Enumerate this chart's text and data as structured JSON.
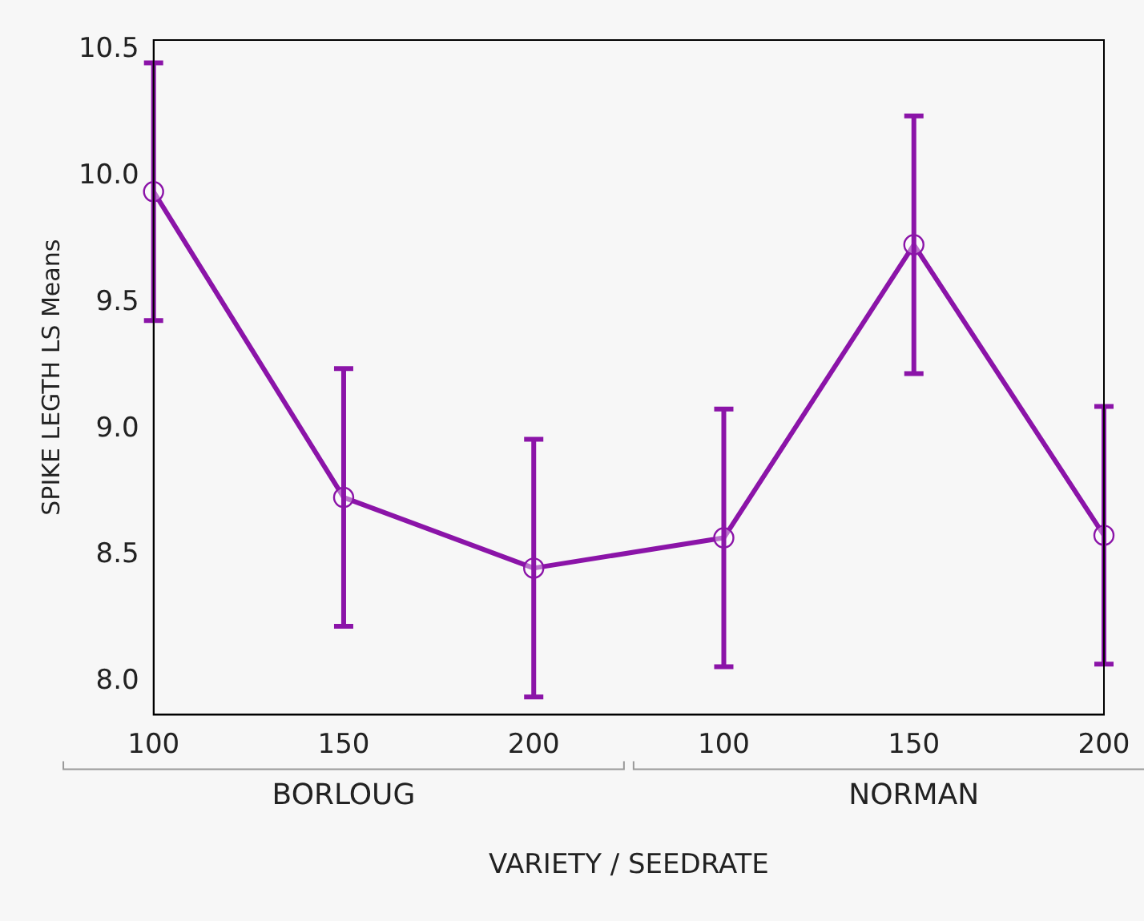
{
  "chart_data": {
    "type": "line",
    "xlabel": "VARIETY / SEEDRATE",
    "ylabel": "SPIKE LEGTH LS Means",
    "categories": [
      "100",
      "150",
      "200",
      "100",
      "150",
      "200"
    ],
    "series": [
      {
        "color": "#8b14a8",
        "values": [
          9.94,
          8.73,
          8.45,
          8.57,
          9.73,
          8.58
        ],
        "errors": [
          0.51,
          0.51,
          0.51,
          0.51,
          0.51,
          0.51
        ]
      }
    ],
    "annotations": [
      "BORLOUG",
      "NORMAN"
    ],
    "ylim": [
      7.87,
      10.54
    ],
    "yticks": [
      {
        "value": 8,
        "label": "8.0"
      },
      8.5,
      {
        "value": 9,
        "label": "9.0"
      },
      9.5,
      {
        "value": 10,
        "label": "10.0"
      },
      10.5
    ],
    "marker": "circle",
    "line_style": "solid",
    "grid": false,
    "legend": false
  }
}
